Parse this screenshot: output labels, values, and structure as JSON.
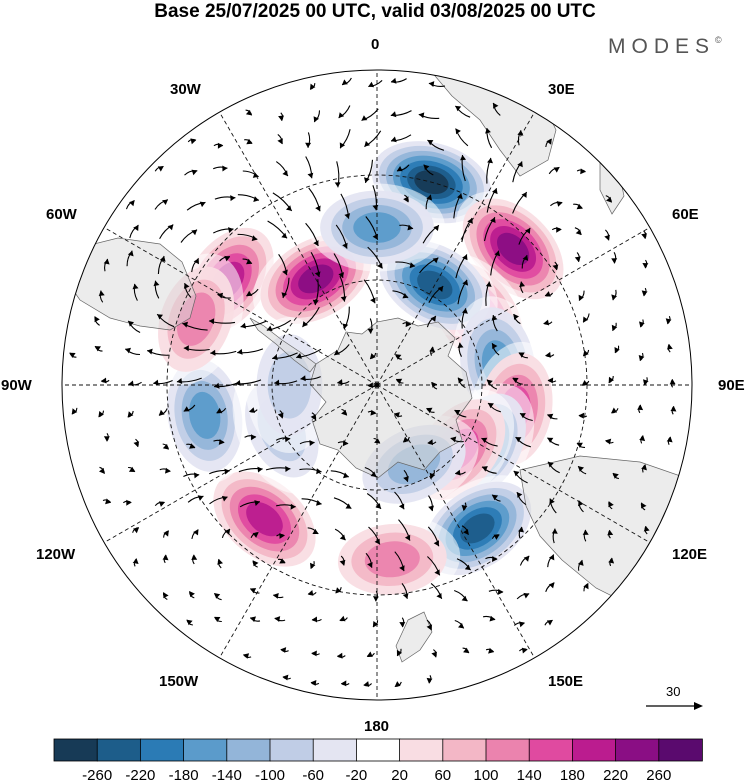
{
  "title": "Base 25/07/2025 00 UTC, valid 03/08/2025 00 UTC",
  "brand": "MODES",
  "brand_mark": "©",
  "longitude_labels": {
    "lon_0": "0",
    "lon_30e": "30E",
    "lon_60e": "60E",
    "lon_90e": "90E",
    "lon_120e": "120E",
    "lon_150e": "150E",
    "lon_180": "180",
    "lon_150w": "150W",
    "lon_120w": "120W",
    "lon_90w": "90W",
    "lon_60w": "60W",
    "lon_30w": "30W"
  },
  "reference_vector": "30",
  "colorbar": {
    "levels": [
      "-260",
      "-220",
      "-180",
      "-140",
      "-100",
      "-60",
      "-20",
      "20",
      "60",
      "100",
      "140",
      "180",
      "220",
      "260"
    ],
    "colors": [
      "#173a56",
      "#1d5d8a",
      "#2b7bb5",
      "#5b9bcb",
      "#93b5d9",
      "#c0cde6",
      "#e4e5f2",
      "#ffffff",
      "#f9dde3",
      "#f3b7c6",
      "#eb83ae",
      "#e04aa0",
      "#bb1c8f",
      "#8a0e84",
      "#5a0a6e"
    ]
  },
  "field_centers": [
    {
      "lon": 15,
      "lat": -30,
      "value": -280
    },
    {
      "lon": 45,
      "lat": -35,
      "value": 240
    },
    {
      "lon": 55,
      "lat": -55,
      "value": 200
    },
    {
      "lon": 30,
      "lat": -57,
      "value": -240
    },
    {
      "lon": 80,
      "lat": -55,
      "value": -160
    },
    {
      "lon": 100,
      "lat": -50,
      "value": 180
    },
    {
      "lon": 120,
      "lat": -55,
      "value": -180
    },
    {
      "lon": 128,
      "lat": -60,
      "value": 160
    },
    {
      "lon": 145,
      "lat": -40,
      "value": -260
    },
    {
      "lon": 175,
      "lat": -40,
      "value": 140
    },
    {
      "lon": 155,
      "lat": -65,
      "value": -120
    },
    {
      "lon": -140,
      "lat": -40,
      "value": 200
    },
    {
      "lon": -100,
      "lat": -40,
      "value": -160
    },
    {
      "lon": -115,
      "lat": -60,
      "value": -100
    },
    {
      "lon": -55,
      "lat": -38,
      "value": 200
    },
    {
      "lon": -70,
      "lat": -35,
      "value": 130
    },
    {
      "lon": -30,
      "lat": -55,
      "value": 240
    },
    {
      "lon": -90,
      "lat": -65,
      "value": -100
    },
    {
      "lon": 0,
      "lat": -45,
      "value": -180
    }
  ]
}
